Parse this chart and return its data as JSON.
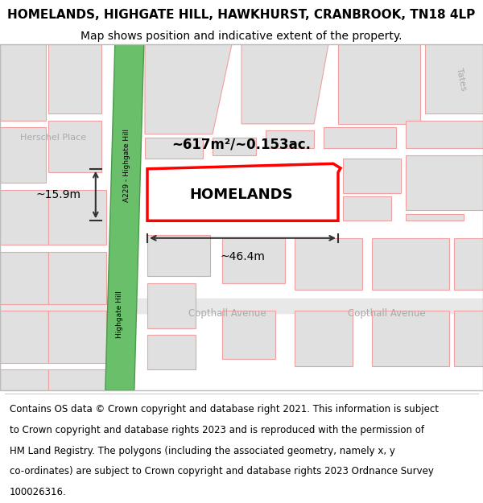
{
  "title": "HOMELANDS, HIGHGATE HILL, HAWKHURST, CRANBROOK, TN18 4LP",
  "subtitle": "Map shows position and indicative extent of the property.",
  "footer_lines": [
    "Contains OS data © Crown copyright and database right 2021. This information is subject",
    "to Crown copyright and database rights 2023 and is reproduced with the permission of",
    "HM Land Registry. The polygons (including the associated geometry, namely x, y",
    "co-ordinates) are subject to Crown copyright and database rights 2023 Ordnance Survey",
    "100026316."
  ],
  "map_bg": "#f2f2f2",
  "road_green_color": "#6abf6a",
  "road_green_border": "#4a9a4a",
  "block_fill": "#e0e0e0",
  "block_stroke": "#f0a0a0",
  "highlight_fill": "#ffffff",
  "highlight_stroke": "#ff0000",
  "street_text_color": "#aaaaaa",
  "property_label": "HOMELANDS",
  "area_label": "~617m²/~0.153ac.",
  "width_label": "~46.4m",
  "height_label": "~15.9m",
  "road_label_1": "A229 - Highgate Hill",
  "road_label_2": "Highgate Hill",
  "herschel_label": "Herschel Place",
  "copthall_label_1": "Copthall Avenue",
  "copthall_label_2": "Copthall Avenue",
  "tates_label": "Tates",
  "title_fontsize": 11,
  "subtitle_fontsize": 10,
  "footer_fontsize": 8.5
}
